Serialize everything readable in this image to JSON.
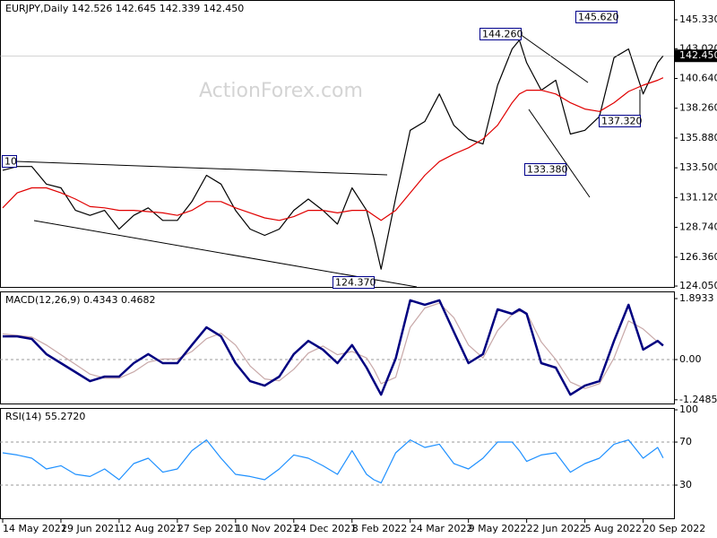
{
  "chart_data": [
    {
      "type": "line",
      "title": "EURJPY,Daily  142.526 142.645 142.339 142.450",
      "watermark": "ActionForex.com",
      "x": [
        0,
        8,
        16,
        24,
        32,
        40,
        48,
        56,
        64,
        72,
        80,
        88,
        96,
        104,
        112,
        120,
        128,
        136,
        144,
        152,
        160,
        168,
        176,
        184,
        192,
        200,
        204,
        208,
        216,
        224,
        232,
        240,
        248,
        256,
        264,
        272,
        280,
        284,
        288,
        296,
        304,
        312,
        320,
        328,
        336,
        344,
        352,
        360,
        363
      ],
      "series": [
        {
          "color": "#000000",
          "values": [
            133.3,
            133.6,
            133.6,
            132.2,
            131.9,
            130.1,
            129.7,
            130.1,
            128.6,
            129.7,
            130.3,
            129.3,
            129.3,
            130.8,
            132.9,
            132.2,
            130.1,
            128.6,
            128.1,
            128.6,
            130.1,
            131.0,
            130.1,
            129.0,
            131.9,
            130.1,
            127.9,
            125.4,
            131.1,
            136.5,
            137.2,
            139.4,
            136.9,
            135.8,
            135.4,
            140.1,
            143.0,
            143.7,
            141.9,
            139.7,
            140.5,
            136.2,
            136.5,
            137.6,
            142.3,
            143.0,
            139.4,
            141.9,
            142.45
          ]
        },
        {
          "color": "#e00000",
          "values": [
            130.3,
            131.5,
            131.9,
            131.9,
            131.5,
            131.0,
            130.4,
            130.3,
            130.1,
            130.1,
            130.0,
            129.9,
            129.7,
            130.1,
            130.8,
            130.8,
            130.3,
            129.9,
            129.5,
            129.3,
            129.6,
            130.1,
            130.1,
            129.9,
            130.1,
            130.1,
            129.7,
            129.3,
            130.1,
            131.5,
            132.9,
            134.0,
            134.6,
            135.1,
            135.8,
            136.9,
            138.7,
            139.4,
            139.7,
            139.7,
            139.4,
            138.7,
            138.2,
            138.0,
            138.7,
            139.6,
            140.1,
            140.5,
            140.7
          ]
        }
      ],
      "xlim": [
        -1.48,
        368.97
      ],
      "ylim": [
        123.98,
        146.91
      ],
      "yticks": [
        {
          "value": 145.33,
          "label": "145.330"
        },
        {
          "value": 143.02,
          "label": "143.020"
        },
        {
          "value": 140.64,
          "label": "140.640"
        },
        {
          "value": 138.26,
          "label": "138.260"
        },
        {
          "value": 135.88,
          "label": "135.880"
        },
        {
          "value": 133.5,
          "label": "133.500"
        },
        {
          "value": 131.12,
          "label": "131.120"
        },
        {
          "value": 128.74,
          "label": "128.740"
        },
        {
          "value": 126.36,
          "label": "126.360"
        },
        {
          "value": 124.05,
          "label": "124.050"
        }
      ],
      "current_price": {
        "value": 142.45,
        "label": "142.450"
      },
      "annotations": [
        "144.260",
        "145.620",
        "137.320",
        "133.380",
        "124.370",
        "10"
      ]
    },
    {
      "type": "line",
      "title": "MACD(12,26,9) 0.4343 0.4682",
      "x": [
        0,
        8,
        16,
        24,
        32,
        40,
        48,
        56,
        64,
        72,
        80,
        88,
        96,
        104,
        112,
        120,
        128,
        136,
        144,
        152,
        160,
        168,
        176,
        184,
        192,
        200,
        204,
        208,
        216,
        224,
        232,
        240,
        248,
        256,
        264,
        272,
        280,
        284,
        288,
        296,
        304,
        312,
        320,
        328,
        336,
        344,
        352,
        360,
        363
      ],
      "series": [
        {
          "color": "#c8a8a8",
          "values": [
            0.8,
            0.75,
            0.7,
            0.45,
            0.15,
            -0.15,
            -0.45,
            -0.58,
            -0.58,
            -0.38,
            -0.08,
            0.02,
            0.02,
            0.25,
            0.65,
            0.82,
            0.45,
            -0.2,
            -0.6,
            -0.66,
            -0.3,
            0.2,
            0.42,
            0.15,
            0.25,
            0.05,
            -0.3,
            -0.75,
            -0.55,
            1.0,
            1.6,
            1.75,
            1.3,
            0.45,
            0.05,
            0.9,
            1.4,
            1.5,
            1.45,
            0.55,
            0.0,
            -0.7,
            -0.9,
            -0.75,
            0.05,
            1.2,
            0.95,
            0.55,
            0.4682
          ]
        },
        {
          "color": "#000080",
          "width": 2.5,
          "values": [
            0.72,
            0.72,
            0.64,
            0.17,
            -0.11,
            -0.39,
            -0.67,
            -0.53,
            -0.53,
            -0.11,
            0.17,
            -0.11,
            -0.11,
            0.45,
            1.0,
            0.72,
            -0.11,
            -0.67,
            -0.81,
            -0.53,
            0.17,
            0.58,
            0.31,
            -0.11,
            0.45,
            -0.25,
            -0.67,
            -1.09,
            0.03,
            1.84,
            1.7,
            1.84,
            0.86,
            -0.11,
            0.17,
            1.56,
            1.42,
            1.56,
            1.42,
            -0.11,
            -0.25,
            -1.09,
            -0.81,
            -0.67,
            0.58,
            1.7,
            0.31,
            0.58,
            0.4343
          ]
        }
      ],
      "xlim": [
        -1.48,
        368.97
      ],
      "ylim": [
        -1.364,
        2.116
      ],
      "yticks": [
        1.8933,
        {
          "value": 0,
          "label": "0.00"
        },
        -1.2485
      ],
      "dashed_ticks": [
        1
      ]
    },
    {
      "type": "line",
      "title": "RSI(14) 55.2720",
      "x": [
        0,
        8,
        16,
        24,
        32,
        40,
        48,
        56,
        64,
        72,
        80,
        88,
        96,
        104,
        112,
        120,
        128,
        136,
        144,
        152,
        160,
        168,
        176,
        184,
        192,
        200,
        204,
        208,
        216,
        224,
        232,
        240,
        248,
        256,
        264,
        272,
        280,
        284,
        288,
        296,
        304,
        312,
        320,
        328,
        336,
        344,
        352,
        360,
        363
      ],
      "series": [
        {
          "color": "#1e90ff",
          "values": [
            60,
            58,
            55,
            45,
            48,
            40,
            38,
            45,
            35,
            50,
            55,
            42,
            45,
            62,
            72,
            55,
            40,
            38,
            35,
            45,
            58,
            55,
            48,
            40,
            62,
            40,
            35,
            32,
            60,
            72,
            65,
            68,
            50,
            45,
            55,
            70,
            70,
            62,
            52,
            58,
            60,
            42,
            50,
            55,
            68,
            72,
            55,
            65,
            55.272
          ]
        }
      ],
      "xlim": [
        -1.48,
        368.97
      ],
      "ylim": [
        -0.83,
        101.7
      ],
      "yticks": [
        100,
        70,
        30
      ],
      "dashed_ticks": [
        1,
        2
      ],
      "xticks": [
        {
          "value": 0,
          "label": "14 May 2021"
        },
        {
          "value": 32,
          "label": "29 Jun 2021"
        },
        {
          "value": 64,
          "label": "12 Aug 2021"
        },
        {
          "value": 96,
          "label": "27 Sep 2021"
        },
        {
          "value": 128,
          "label": "10 Nov 2021"
        },
        {
          "value": 160,
          "label": "24 Dec 2021"
        },
        {
          "value": 192,
          "label": "8 Feb 2022"
        },
        {
          "value": 224,
          "label": "24 Mar 2022"
        },
        {
          "value": 256,
          "label": "9 May 2022"
        },
        {
          "value": 288,
          "label": "22 Jun 2022"
        },
        {
          "value": 320,
          "label": "5 Aug 2022"
        },
        {
          "value": 352,
          "label": "20 Sep 2022"
        }
      ]
    }
  ]
}
